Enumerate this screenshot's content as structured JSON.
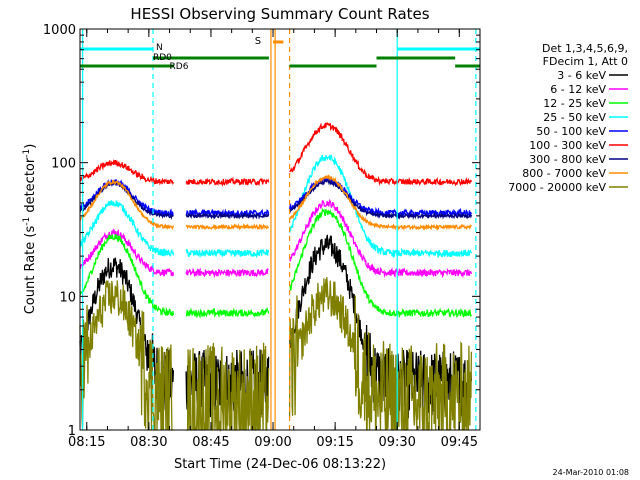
{
  "chart_data": {
    "type": "line",
    "title": "HESSI Observing Summary Count Rates",
    "xlabel": "Start Time (24-Dec-06 08:13:22)",
    "ylabel_main": "Count Rate (s",
    "ylabel_sup1": "-1",
    "ylabel_mid": " detector",
    "ylabel_sup2": "-1",
    "ylabel_end": ")",
    "y_scale": "log",
    "ylim": [
      1,
      1000
    ],
    "xlim": [
      "08:13:22",
      "09:50:00"
    ],
    "x_tick_labels": [
      "08:15",
      "08:30",
      "08:45",
      "09:00",
      "09:15",
      "09:30",
      "09:45"
    ],
    "y_tick_labels": [
      "1",
      "10",
      "100",
      "1000"
    ],
    "legend_header": [
      "Det 1,3,4,5,6,9,",
      "FDecim 1, Att 0"
    ],
    "series": [
      {
        "name": "3 - 6 keV",
        "color": "#000000",
        "level": 2.2,
        "peaks": [
          17,
          24
        ],
        "noise": 0.2
      },
      {
        "name": "6 - 12 keV",
        "color": "#ff00ff",
        "level": 15,
        "peaks": [
          30,
          50
        ],
        "noise": 0.06
      },
      {
        "name": "12 - 25 keV",
        "color": "#00ff00",
        "level": 7.5,
        "peaks": [
          28,
          43
        ],
        "noise": 0.06
      },
      {
        "name": "25 - 50 keV",
        "color": "#00ffff",
        "level": 21,
        "peaks": [
          50,
          110
        ],
        "noise": 0.06
      },
      {
        "name": "50 - 100 keV",
        "color": "#0000ff",
        "level": 42,
        "peaks": [
          72,
          75
        ],
        "noise": 0.05
      },
      {
        "name": "100 - 300 keV",
        "color": "#ff0000",
        "level": 72,
        "peaks": [
          100,
          190
        ],
        "noise": 0.05
      },
      {
        "name": "300 - 800 keV",
        "color": "#000080",
        "level": 40,
        "peaks": [
          70,
          72
        ],
        "noise": 0.03
      },
      {
        "name": "800 - 7000 keV",
        "color": "#ff8c00",
        "level": 33,
        "peaks": [
          72,
          78
        ],
        "noise": 0.03
      },
      {
        "name": "7000 - 20000 keV",
        "color": "#808000",
        "level": 1.6,
        "peaks": [
          10,
          10
        ],
        "noise": 0.35
      }
    ],
    "annotations": {
      "saa_label": "S",
      "night_label": "N",
      "attenuator_label": "RD0",
      "decimation_label": "RD6"
    },
    "colors": {
      "saa": "#ff8c00",
      "night": "#00ffff",
      "flags": "#008000"
    },
    "footer_timestamp": "24-Mar-2010 01:08"
  }
}
